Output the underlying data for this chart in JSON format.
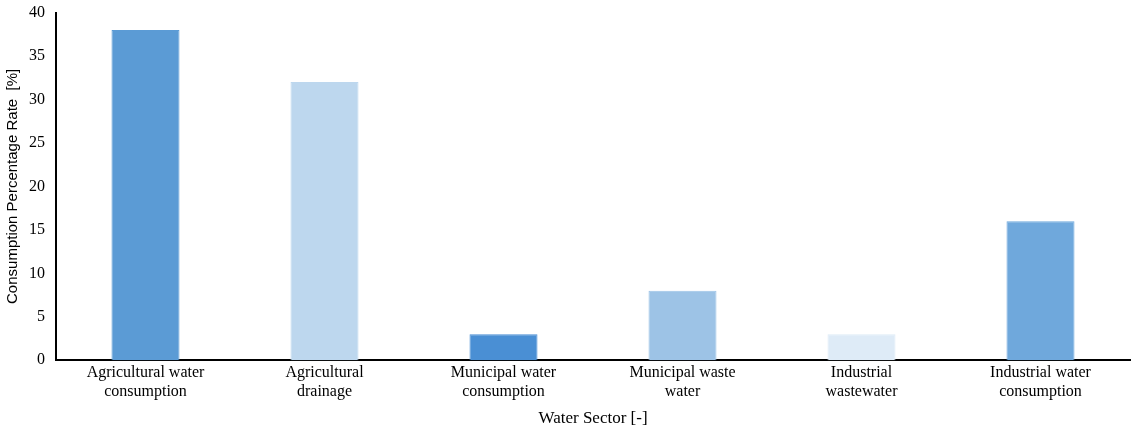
{
  "chart_data": {
    "type": "bar",
    "xlabel": "Water Sector [-]",
    "ylabel": "Consumption Percentage Rate  [%]",
    "categories": [
      "Agricultural water consumption",
      "Agricultural drainage",
      "Municipal water consumption",
      "Municipal waste water",
      "Industrial wastewater",
      "Industrial water consumption"
    ],
    "values": [
      38,
      32,
      3,
      8,
      3,
      16
    ],
    "colors": [
      "#5b9bd5",
      "#bdd7ee",
      "#4a8fd4",
      "#9dc3e6",
      "#deebf7",
      "#6fa8dc"
    ],
    "ylim": [
      0,
      40
    ],
    "yticks": [
      0,
      5,
      10,
      15,
      20,
      25,
      30,
      35,
      40
    ],
    "grid": false,
    "legend": false
  }
}
